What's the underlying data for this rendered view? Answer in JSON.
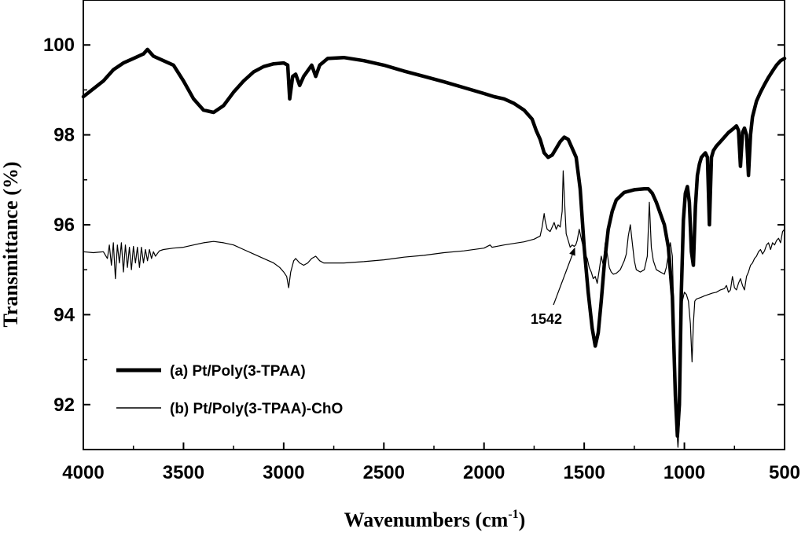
{
  "chart_data": {
    "type": "line",
    "xlabel": "Wavenumbers (cm",
    "xlabel_sup": "-1",
    "xlabel_close": ")",
    "ylabel": "Transmittance (%)",
    "xlim": [
      4000,
      500
    ],
    "ylim": [
      91,
      101
    ],
    "x_ticks": [
      4000,
      3500,
      3000,
      2500,
      2000,
      1500,
      1000,
      500
    ],
    "y_ticks": [
      92,
      94,
      96,
      98,
      100
    ],
    "grid": false,
    "legend_position": "bottom-left",
    "annotation": {
      "text": "1542",
      "x": 1542,
      "y": 95.55
    },
    "series": [
      {
        "name": "(a) Pt/Poly(3-TPAA)",
        "style": "thick",
        "points": [
          [
            4000,
            98.85
          ],
          [
            3900,
            99.2
          ],
          [
            3850,
            99.45
          ],
          [
            3800,
            99.6
          ],
          [
            3750,
            99.7
          ],
          [
            3700,
            99.8
          ],
          [
            3680,
            99.9
          ],
          [
            3650,
            99.75
          ],
          [
            3600,
            99.65
          ],
          [
            3550,
            99.55
          ],
          [
            3500,
            99.2
          ],
          [
            3450,
            98.8
          ],
          [
            3400,
            98.55
          ],
          [
            3350,
            98.5
          ],
          [
            3300,
            98.65
          ],
          [
            3250,
            98.95
          ],
          [
            3200,
            99.2
          ],
          [
            3150,
            99.4
          ],
          [
            3100,
            99.52
          ],
          [
            3050,
            99.58
          ],
          [
            3000,
            99.6
          ],
          [
            2980,
            99.55
          ],
          [
            2970,
            98.8
          ],
          [
            2955,
            99.3
          ],
          [
            2940,
            99.35
          ],
          [
            2920,
            99.1
          ],
          [
            2900,
            99.3
          ],
          [
            2860,
            99.55
          ],
          [
            2840,
            99.3
          ],
          [
            2820,
            99.55
          ],
          [
            2780,
            99.7
          ],
          [
            2700,
            99.72
          ],
          [
            2600,
            99.65
          ],
          [
            2500,
            99.55
          ],
          [
            2400,
            99.42
          ],
          [
            2300,
            99.3
          ],
          [
            2200,
            99.18
          ],
          [
            2100,
            99.05
          ],
          [
            2000,
            98.92
          ],
          [
            1950,
            98.85
          ],
          [
            1900,
            98.8
          ],
          [
            1850,
            98.7
          ],
          [
            1800,
            98.55
          ],
          [
            1760,
            98.35
          ],
          [
            1740,
            98.1
          ],
          [
            1720,
            97.9
          ],
          [
            1700,
            97.6
          ],
          [
            1680,
            97.5
          ],
          [
            1660,
            97.55
          ],
          [
            1640,
            97.7
          ],
          [
            1620,
            97.85
          ],
          [
            1600,
            97.95
          ],
          [
            1580,
            97.9
          ],
          [
            1560,
            97.7
          ],
          [
            1540,
            97.5
          ],
          [
            1520,
            96.8
          ],
          [
            1500,
            95.5
          ],
          [
            1480,
            94.5
          ],
          [
            1460,
            93.7
          ],
          [
            1445,
            93.3
          ],
          [
            1430,
            93.6
          ],
          [
            1415,
            94.3
          ],
          [
            1400,
            95.1
          ],
          [
            1380,
            95.9
          ],
          [
            1360,
            96.3
          ],
          [
            1340,
            96.55
          ],
          [
            1300,
            96.72
          ],
          [
            1250,
            96.78
          ],
          [
            1200,
            96.8
          ],
          [
            1180,
            96.8
          ],
          [
            1160,
            96.7
          ],
          [
            1140,
            96.5
          ],
          [
            1120,
            96.25
          ],
          [
            1100,
            96.0
          ],
          [
            1080,
            95.5
          ],
          [
            1060,
            94.4
          ],
          [
            1045,
            92.2
          ],
          [
            1035,
            91.3
          ],
          [
            1025,
            92.0
          ],
          [
            1015,
            94.5
          ],
          [
            1005,
            96.1
          ],
          [
            995,
            96.7
          ],
          [
            985,
            96.85
          ],
          [
            975,
            96.5
          ],
          [
            965,
            95.4
          ],
          [
            955,
            95.1
          ],
          [
            945,
            96.4
          ],
          [
            935,
            97.1
          ],
          [
            925,
            97.35
          ],
          [
            915,
            97.5
          ],
          [
            905,
            97.55
          ],
          [
            895,
            97.6
          ],
          [
            885,
            97.5
          ],
          [
            875,
            96.0
          ],
          [
            865,
            97.5
          ],
          [
            855,
            97.65
          ],
          [
            840,
            97.75
          ],
          [
            820,
            97.85
          ],
          [
            800,
            97.95
          ],
          [
            780,
            98.05
          ],
          [
            760,
            98.12
          ],
          [
            740,
            98.2
          ],
          [
            730,
            98.1
          ],
          [
            720,
            97.3
          ],
          [
            710,
            98.05
          ],
          [
            700,
            98.15
          ],
          [
            690,
            98.0
          ],
          [
            680,
            97.1
          ],
          [
            670,
            98.0
          ],
          [
            660,
            98.4
          ],
          [
            640,
            98.75
          ],
          [
            620,
            98.95
          ],
          [
            600,
            99.12
          ],
          [
            580,
            99.28
          ],
          [
            560,
            99.42
          ],
          [
            540,
            99.55
          ],
          [
            520,
            99.65
          ],
          [
            500,
            99.7
          ]
        ]
      },
      {
        "name": "(b) Pt/Poly(3-TPAA)-ChO",
        "style": "thin",
        "points": [
          [
            4000,
            95.4
          ],
          [
            3950,
            95.38
          ],
          [
            3900,
            95.4
          ],
          [
            3880,
            95.25
          ],
          [
            3870,
            95.55
          ],
          [
            3860,
            95.1
          ],
          [
            3850,
            95.6
          ],
          [
            3840,
            94.8
          ],
          [
            3830,
            95.55
          ],
          [
            3820,
            95.15
          ],
          [
            3810,
            95.6
          ],
          [
            3800,
            94.95
          ],
          [
            3790,
            95.55
          ],
          [
            3780,
            95.05
          ],
          [
            3770,
            95.5
          ],
          [
            3760,
            95.0
          ],
          [
            3750,
            95.52
          ],
          [
            3740,
            95.15
          ],
          [
            3730,
            95.5
          ],
          [
            3720,
            95.05
          ],
          [
            3710,
            95.5
          ],
          [
            3700,
            95.15
          ],
          [
            3690,
            95.45
          ],
          [
            3680,
            95.2
          ],
          [
            3670,
            95.45
          ],
          [
            3660,
            95.25
          ],
          [
            3650,
            95.4
          ],
          [
            3640,
            95.3
          ],
          [
            3620,
            95.42
          ],
          [
            3600,
            95.45
          ],
          [
            3550,
            95.48
          ],
          [
            3500,
            95.5
          ],
          [
            3450,
            95.55
          ],
          [
            3400,
            95.6
          ],
          [
            3350,
            95.63
          ],
          [
            3300,
            95.6
          ],
          [
            3250,
            95.55
          ],
          [
            3200,
            95.45
          ],
          [
            3150,
            95.35
          ],
          [
            3100,
            95.25
          ],
          [
            3050,
            95.15
          ],
          [
            3020,
            95.05
          ],
          [
            3000,
            94.95
          ],
          [
            2985,
            94.85
          ],
          [
            2975,
            94.6
          ],
          [
            2965,
            94.95
          ],
          [
            2950,
            95.2
          ],
          [
            2940,
            95.25
          ],
          [
            2920,
            95.15
          ],
          [
            2900,
            95.1
          ],
          [
            2880,
            95.15
          ],
          [
            2860,
            95.25
          ],
          [
            2840,
            95.3
          ],
          [
            2820,
            95.2
          ],
          [
            2800,
            95.15
          ],
          [
            2700,
            95.15
          ],
          [
            2600,
            95.18
          ],
          [
            2500,
            95.22
          ],
          [
            2400,
            95.28
          ],
          [
            2300,
            95.32
          ],
          [
            2200,
            95.38
          ],
          [
            2100,
            95.42
          ],
          [
            2000,
            95.48
          ],
          [
            1970,
            95.55
          ],
          [
            1960,
            95.5
          ],
          [
            1900,
            95.55
          ],
          [
            1800,
            95.62
          ],
          [
            1750,
            95.68
          ],
          [
            1720,
            95.75
          ],
          [
            1710,
            95.95
          ],
          [
            1700,
            96.25
          ],
          [
            1695,
            96.1
          ],
          [
            1685,
            95.9
          ],
          [
            1670,
            95.85
          ],
          [
            1660,
            95.95
          ],
          [
            1650,
            96.05
          ],
          [
            1640,
            95.9
          ],
          [
            1630,
            96.0
          ],
          [
            1620,
            95.95
          ],
          [
            1610,
            96.3
          ],
          [
            1605,
            97.2
          ],
          [
            1598,
            96.5
          ],
          [
            1590,
            95.8
          ],
          [
            1580,
            95.65
          ],
          [
            1570,
            95.5
          ],
          [
            1560,
            95.55
          ],
          [
            1550,
            95.52
          ],
          [
            1542,
            95.55
          ],
          [
            1535,
            95.65
          ],
          [
            1525,
            95.9
          ],
          [
            1515,
            95.7
          ],
          [
            1505,
            95.5
          ],
          [
            1495,
            95.35
          ],
          [
            1485,
            95.25
          ],
          [
            1475,
            95.05
          ],
          [
            1465,
            94.95
          ],
          [
            1455,
            94.8
          ],
          [
            1445,
            94.85
          ],
          [
            1435,
            94.7
          ],
          [
            1425,
            95.0
          ],
          [
            1415,
            95.3
          ],
          [
            1405,
            95.1
          ],
          [
            1395,
            95.6
          ],
          [
            1385,
            95.35
          ],
          [
            1375,
            95.05
          ],
          [
            1365,
            94.95
          ],
          [
            1355,
            94.9
          ],
          [
            1340,
            94.92
          ],
          [
            1320,
            95.0
          ],
          [
            1300,
            95.2
          ],
          [
            1290,
            95.35
          ],
          [
            1280,
            95.75
          ],
          [
            1270,
            96.0
          ],
          [
            1260,
            95.6
          ],
          [
            1250,
            95.2
          ],
          [
            1240,
            95.0
          ],
          [
            1220,
            94.95
          ],
          [
            1200,
            95.0
          ],
          [
            1185,
            95.3
          ],
          [
            1175,
            96.5
          ],
          [
            1165,
            95.5
          ],
          [
            1155,
            95.2
          ],
          [
            1140,
            95.0
          ],
          [
            1120,
            94.95
          ],
          [
            1100,
            94.9
          ],
          [
            1090,
            95.05
          ],
          [
            1080,
            95.35
          ],
          [
            1070,
            95.6
          ],
          [
            1060,
            95.3
          ],
          [
            1050,
            93.5
          ],
          [
            1040,
            91.6
          ],
          [
            1032,
            91.05
          ],
          [
            1025,
            91.6
          ],
          [
            1018,
            93.2
          ],
          [
            1010,
            94.3
          ],
          [
            1000,
            94.5
          ],
          [
            990,
            94.45
          ],
          [
            980,
            94.3
          ],
          [
            970,
            93.8
          ],
          [
            962,
            92.95
          ],
          [
            955,
            93.8
          ],
          [
            948,
            94.3
          ],
          [
            940,
            94.35
          ],
          [
            920,
            94.38
          ],
          [
            900,
            94.42
          ],
          [
            880,
            94.45
          ],
          [
            860,
            94.48
          ],
          [
            840,
            94.5
          ],
          [
            820,
            94.55
          ],
          [
            800,
            94.58
          ],
          [
            790,
            94.65
          ],
          [
            780,
            94.5
          ],
          [
            770,
            94.55
          ],
          [
            760,
            94.85
          ],
          [
            750,
            94.6
          ],
          [
            740,
            94.55
          ],
          [
            730,
            94.7
          ],
          [
            720,
            94.8
          ],
          [
            710,
            94.65
          ],
          [
            700,
            94.55
          ],
          [
            690,
            94.85
          ],
          [
            680,
            94.95
          ],
          [
            670,
            95.1
          ],
          [
            660,
            95.15
          ],
          [
            650,
            95.25
          ],
          [
            640,
            95.3
          ],
          [
            630,
            95.4
          ],
          [
            620,
            95.45
          ],
          [
            610,
            95.35
          ],
          [
            600,
            95.42
          ],
          [
            590,
            95.55
          ],
          [
            580,
            95.6
          ],
          [
            570,
            95.45
          ],
          [
            560,
            95.6
          ],
          [
            550,
            95.55
          ],
          [
            540,
            95.65
          ],
          [
            530,
            95.7
          ],
          [
            520,
            95.6
          ],
          [
            510,
            95.85
          ],
          [
            500,
            95.9
          ]
        ]
      }
    ]
  }
}
